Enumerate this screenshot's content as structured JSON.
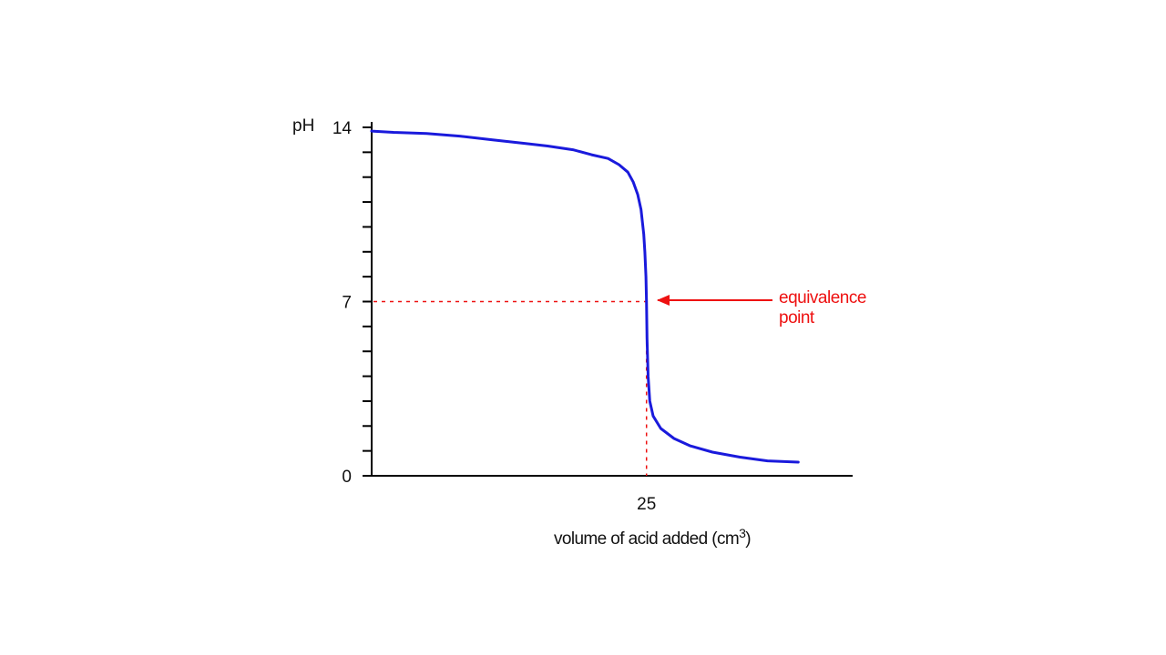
{
  "colors": {
    "curve": "#1a1adc",
    "annotation": "#ee1111",
    "axis": "#000000",
    "background": "#ffffff"
  },
  "chart_data": {
    "type": "line",
    "title": "",
    "ylabel": "pH",
    "xlabel": "volume of acid added (cm",
    "xlabel_sup": "3",
    "xlabel_end": ")",
    "xlim": [
      0,
      43.75
    ],
    "ylim": [
      0,
      14
    ],
    "x_ticks": [
      {
        "value": 25,
        "label": "25"
      }
    ],
    "y_ticks_labeled": [
      {
        "value": 0,
        "label": "0"
      },
      {
        "value": 7,
        "label": "7"
      },
      {
        "value": 14,
        "label": "14"
      }
    ],
    "y_minor_ticks": [
      1,
      2,
      3,
      4,
      5,
      6,
      8,
      9,
      10,
      11,
      12,
      13
    ],
    "grid": false,
    "legend": "none",
    "series": [
      {
        "x": [
          0,
          2,
          5,
          8,
          11,
          14,
          16,
          18.3,
          20,
          21.5,
          22.5,
          23.3,
          23.8,
          24.2,
          24.5,
          24.75,
          24.85,
          24.95,
          25,
          25.05,
          25.15,
          25.3,
          25.6,
          26.3,
          27.5,
          29,
          31,
          33.5,
          36,
          38.8
        ],
        "y": [
          13.85,
          13.8,
          13.75,
          13.65,
          13.5,
          13.35,
          13.25,
          13.1,
          12.9,
          12.75,
          12.5,
          12.2,
          11.8,
          11.3,
          10.7,
          9.7,
          9.0,
          8.0,
          7.0,
          5.5,
          4.0,
          3.0,
          2.4,
          1.9,
          1.5,
          1.2,
          0.95,
          0.75,
          0.6,
          0.55
        ]
      }
    ],
    "annotations": [
      {
        "lines": [
          "equivalence",
          "point"
        ],
        "x": 25,
        "y": 7
      }
    ]
  }
}
